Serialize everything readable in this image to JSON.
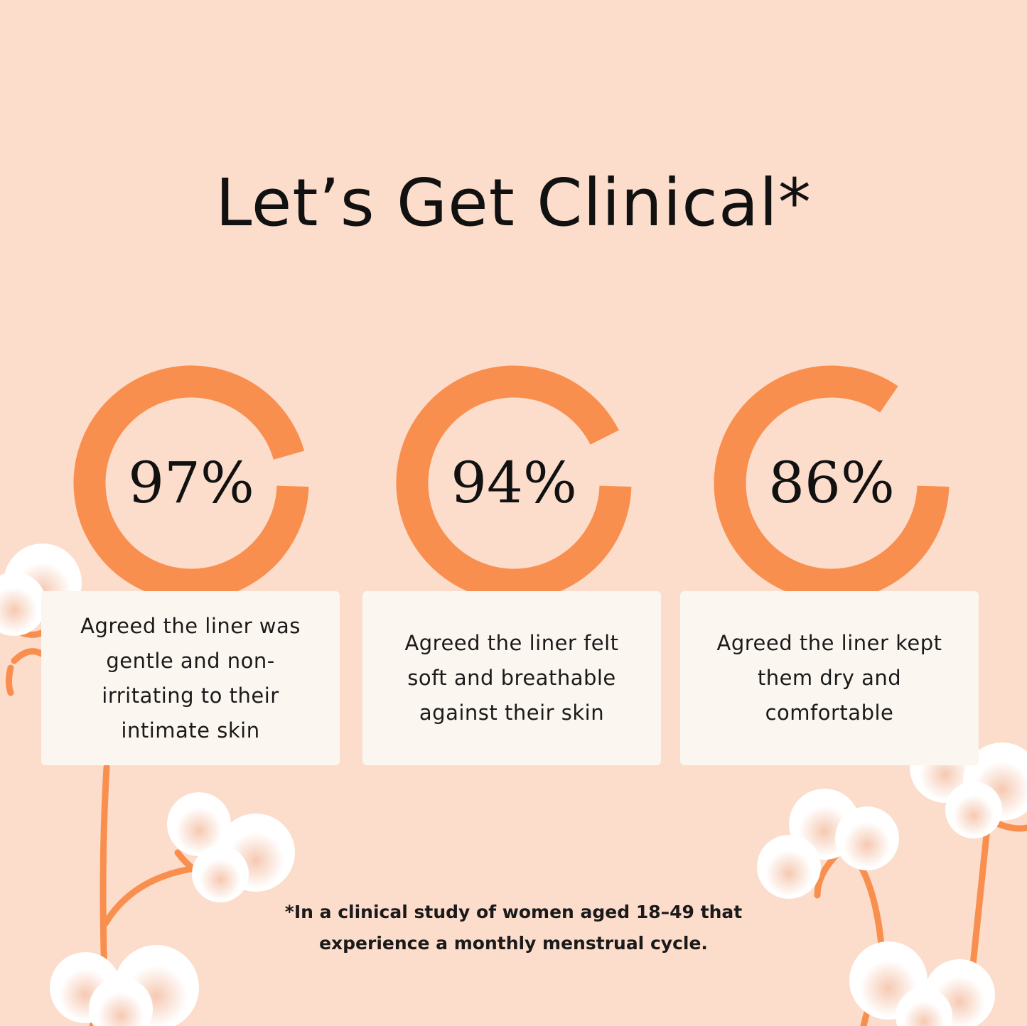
{
  "title": "Let’s Get Clinical*",
  "colors": {
    "background": "#fcdcca",
    "accent": "#f98f4f",
    "card": "#fbf6ef"
  },
  "stats": [
    {
      "value": 97,
      "label": "97%",
      "text": "Agreed the liner was gentle and non-irritating to their intimate skin"
    },
    {
      "value": 94,
      "label": "94%",
      "text": "Agreed the liner felt soft and breathable against their skin"
    },
    {
      "value": 86,
      "label": "86%",
      "text": "Agreed the liner kept them dry and comfortable"
    }
  ],
  "footnote": "*In a clinical study of women aged 18–49 that experience a monthly menstrual cycle.",
  "decorations": [
    "cotton-flower-icon"
  ]
}
